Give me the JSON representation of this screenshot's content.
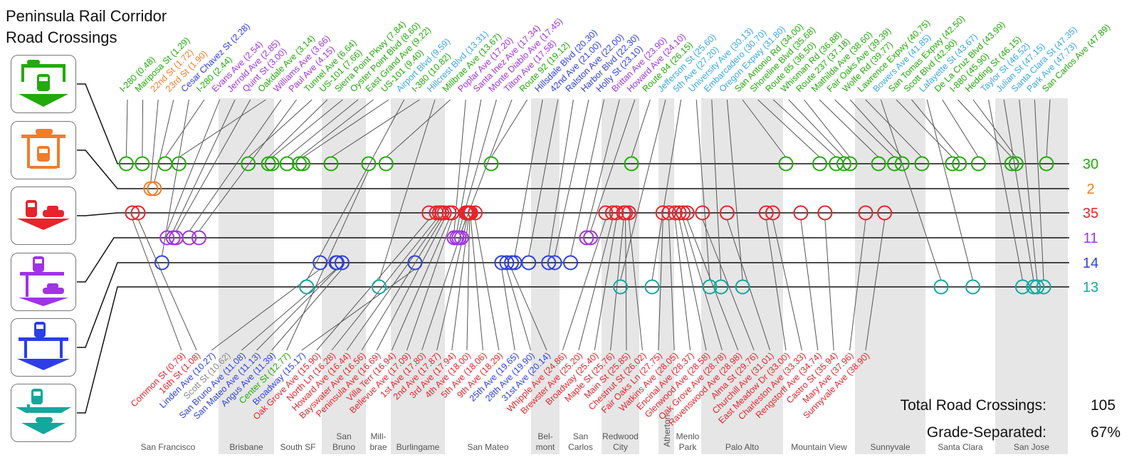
{
  "title": {
    "line1": "Peninsula Rail Corridor",
    "line2": "Road Crossings"
  },
  "colors": {
    "g": "#22aa0a",
    "o": "#f07d2a",
    "r": "#e8232b",
    "p": "#a033e6",
    "b": "#2d3ee6",
    "t": "#14a79c",
    "label_t": "#3aa8e8",
    "none": "#888888",
    "band": "#e6e6e6",
    "city": "#555555"
  },
  "rows": [
    {
      "cat": "g",
      "count": "30",
      "icon": "road-over-rail-icon"
    },
    {
      "cat": "o",
      "count": "2",
      "icon": "road-under-rail-icon"
    },
    {
      "cat": "r",
      "count": "35",
      "icon": "at-grade-crossing-icon"
    },
    {
      "cat": "p",
      "count": "11",
      "icon": "rail-over-road-icon"
    },
    {
      "cat": "b",
      "count": "14",
      "icon": "rail-bridge-over-road-icon"
    },
    {
      "cat": "t",
      "count": "13",
      "icon": "rail-over-sunken-road-icon"
    }
  ],
  "cities": [
    {
      "lines": [
        "San Francisco"
      ],
      "band": false
    },
    {
      "lines": [
        "Brisbane"
      ],
      "band": true
    },
    {
      "lines": [
        "South SF"
      ],
      "band": false
    },
    {
      "lines": [
        "San",
        "Bruno"
      ],
      "band": true
    },
    {
      "lines": [
        "Mill-",
        "brae"
      ],
      "band": false
    },
    {
      "lines": [
        "Burlingame"
      ],
      "band": true
    },
    {
      "lines": [
        "San Mateo"
      ],
      "band": false
    },
    {
      "lines": [
        "Bel-",
        "mont"
      ],
      "band": true
    },
    {
      "lines": [
        "San",
        "Carlos"
      ],
      "band": false
    },
    {
      "lines": [
        "Redwood",
        "City"
      ],
      "band": true
    },
    {
      "lines": [
        "Menlo",
        "Park"
      ],
      "band": false
    },
    {
      "lines": [
        "Atherton"
      ],
      "band": true
    },
    {
      "lines": [
        "Palo Alto"
      ],
      "band": true
    },
    {
      "lines": [
        "Mountain View"
      ],
      "band": false
    },
    {
      "lines": [
        "Sunnyvale"
      ],
      "band": true
    },
    {
      "lines": [
        "Santa Clara"
      ],
      "band": false
    },
    {
      "lines": [
        "San Jose"
      ],
      "band": true
    }
  ],
  "top_labels": [
    {
      "label": "I-280 (0.48)",
      "mile": 0.48,
      "cat": "g"
    },
    {
      "label": "Mariposa St (1.29)",
      "mile": 1.29,
      "cat": "g"
    },
    {
      "label": "22nd St (1.72)",
      "mile": 1.72,
      "cat": "o"
    },
    {
      "label": "23rd St (1.90)",
      "mile": 1.9,
      "cat": "o"
    },
    {
      "label": "Cesar Chavez St (2.28)",
      "mile": 2.28,
      "cat": "b"
    },
    {
      "label": "I-280 (2.44)",
      "mile": 2.44,
      "cat": "g"
    },
    {
      "label": "Evans Ave (2.54)",
      "mile": 2.54,
      "cat": "p"
    },
    {
      "label": "Jerrold Ave (2.85)",
      "mile": 2.85,
      "cat": "p"
    },
    {
      "label": "Quint St (3.00)",
      "mile": 3.0,
      "cat": "p"
    },
    {
      "label": "Oakdale Ave (3.14)",
      "mile": 3.14,
      "cat": "g"
    },
    {
      "label": "Williams Ave (3.66)",
      "mile": 3.66,
      "cat": "p"
    },
    {
      "label": "Paul Ave (4.15)",
      "mile": 4.15,
      "cat": "p"
    },
    {
      "label": "Tunnel Ave (6.64)",
      "mile": 6.64,
      "cat": "g"
    },
    {
      "label": "US-101 (7.66)",
      "mile": 7.66,
      "cat": "g"
    },
    {
      "label": "Sierra Point Pkwy (7.84)",
      "mile": 7.84,
      "cat": "g"
    },
    {
      "label": "Oyster Point Blvd (8.60)",
      "mile": 8.6,
      "cat": "g"
    },
    {
      "label": "East Grand Ave (9.22)",
      "mile": 9.22,
      "cat": "g"
    },
    {
      "label": "US-101 (9.40)",
      "mile": 9.4,
      "cat": "g"
    },
    {
      "label": "Airport Blvd (9.59)",
      "mile": 9.59,
      "cat": "t"
    },
    {
      "label": "I-380 (10.82)",
      "mile": 10.82,
      "cat": "g"
    },
    {
      "label": "Hillcrest Blvd (13.31)",
      "mile": 13.31,
      "cat": "t"
    },
    {
      "label": "Millbrae Ave (13.67)",
      "mile": 13.67,
      "cat": "g"
    },
    {
      "label": "Poplar Ave (17.20)",
      "mile": 17.2,
      "cat": "p"
    },
    {
      "label": "Santa Inez Ave (17.34)",
      "mile": 17.34,
      "cat": "p"
    },
    {
      "label": "Monte Diablo Ave (17.45)",
      "mile": 17.45,
      "cat": "p"
    },
    {
      "label": "Tilton Ave (17.58)",
      "mile": 17.58,
      "cat": "p"
    },
    {
      "label": "Route 92 (19.12)",
      "mile": 19.12,
      "cat": "g"
    },
    {
      "label": "Hillsdale Blvd (20.30)",
      "mile": 20.3,
      "cat": "b"
    },
    {
      "label": "42nd Ave (21.00)",
      "mile": 21.0,
      "cat": "b"
    },
    {
      "label": "Ralston Ave (22.00)",
      "mile": 22.0,
      "cat": "b"
    },
    {
      "label": "Harbor Blvd (22.30)",
      "mile": 22.3,
      "cat": "b"
    },
    {
      "label": "Holly St (23.10)",
      "mile": 23.1,
      "cat": "b"
    },
    {
      "label": "Brittan Ave (23.90)",
      "mile": 23.9,
      "cat": "p"
    },
    {
      "label": "Howard Ave (24.10)",
      "mile": 24.1,
      "cat": "p"
    },
    {
      "label": "Route 84 (26.15)",
      "mile": 26.15,
      "cat": "g"
    },
    {
      "label": "Jefferson St (25.60)",
      "mile": 25.6,
      "cat": "t"
    },
    {
      "label": "5th Ave (27.20)",
      "mile": 27.2,
      "cat": "t"
    },
    {
      "label": "University Ave (30.13)",
      "mile": 30.13,
      "cat": "t"
    },
    {
      "label": "Embarcadero (30.70)",
      "mile": 30.7,
      "cat": "t"
    },
    {
      "label": "Oregon Expwy (31.80)",
      "mile": 31.8,
      "cat": "t"
    },
    {
      "label": "San Antonio Rd (34.00)",
      "mile": 34.0,
      "cat": "g"
    },
    {
      "label": "Shoreline Blvd (35.68)",
      "mile": 35.68,
      "cat": "g"
    },
    {
      "label": "Route 85 (36.50)",
      "mile": 36.5,
      "cat": "g"
    },
    {
      "label": "Whisman Rd (36.88)",
      "mile": 36.88,
      "cat": "g"
    },
    {
      "label": "Route 237 (37.18)",
      "mile": 37.18,
      "cat": "g"
    },
    {
      "label": "Mathilda Ave (38.60)",
      "mile": 38.6,
      "cat": "g"
    },
    {
      "label": "Fair Oaks Ave (39.39)",
      "mile": 39.39,
      "cat": "g"
    },
    {
      "label": "Wolfe Rd (39.77)",
      "mile": 39.77,
      "cat": "g"
    },
    {
      "label": "Lawrence Expwy (40.75)",
      "mile": 40.75,
      "cat": "g"
    },
    {
      "label": "Bowers Ave (41.85)",
      "mile": 41.85,
      "cat": "t"
    },
    {
      "label": "San Tomas Expwy (42.50)",
      "mile": 42.5,
      "cat": "g"
    },
    {
      "label": "Scott Blvd (42.90)",
      "mile": 42.9,
      "cat": "g"
    },
    {
      "label": "Lafayette St (43.67)",
      "mile": 43.67,
      "cat": "t"
    },
    {
      "label": "De La Cruz Blvd (43.99)",
      "mile": 43.99,
      "cat": "g"
    },
    {
      "label": "I-880 (45.90)",
      "mile": 45.9,
      "cat": "g"
    },
    {
      "label": "Hedding St (46.15)",
      "mile": 46.15,
      "cat": "g"
    },
    {
      "label": "Taylor St (46.52)",
      "mile": 46.52,
      "cat": "t"
    },
    {
      "label": "Julian St (47.15)",
      "mile": 47.15,
      "cat": "t"
    },
    {
      "label": "Santa Clara St (47.35)",
      "mile": 47.35,
      "cat": "t"
    },
    {
      "label": "Park Ave (47.73)",
      "mile": 47.73,
      "cat": "t"
    },
    {
      "label": "San Carlos Ave (47.89)",
      "mile": 47.89,
      "cat": "g"
    }
  ],
  "bottom_labels": [
    {
      "label": "Common St (0.79)",
      "mile": 0.79,
      "cat": "r"
    },
    {
      "label": "16th St (1.08)",
      "mile": 1.08,
      "cat": "r"
    },
    {
      "label": "Linden Ave (10.27)",
      "mile": 10.27,
      "cat": "b"
    },
    {
      "label": "Scott St (10.62)",
      "mile": 10.62,
      "cat": "none"
    },
    {
      "label": "San Bruno Ave (11.08)",
      "mile": 11.08,
      "cat": "b"
    },
    {
      "label": "San Mateo Ave (11.13)",
      "mile": 11.13,
      "cat": "b"
    },
    {
      "label": "Angus Ave (11.39)",
      "mile": 11.39,
      "cat": "b"
    },
    {
      "label": "Center St (12.77)",
      "mile": 12.77,
      "cat": "g"
    },
    {
      "label": "Broadway (15.17)",
      "mile": 15.17,
      "cat": "b"
    },
    {
      "label": "Oak Grove Ave (15.90)",
      "mile": 15.9,
      "cat": "r"
    },
    {
      "label": "North Ln (16.28)",
      "mile": 16.28,
      "cat": "r"
    },
    {
      "label": "Howard Ave (16.44)",
      "mile": 16.44,
      "cat": "r"
    },
    {
      "label": "Bayswater Ave (16.56)",
      "mile": 16.56,
      "cat": "r"
    },
    {
      "label": "Peninsula Ave (16.69)",
      "mile": 16.69,
      "cat": "r"
    },
    {
      "label": "Villa Terr (16.94)",
      "mile": 16.94,
      "cat": "r"
    },
    {
      "label": "Bellevue Ave (17.09)",
      "mile": 17.09,
      "cat": "r"
    },
    {
      "label": "1st Ave (17.80)",
      "mile": 17.8,
      "cat": "r"
    },
    {
      "label": "2nd Ave (17.87)",
      "mile": 17.87,
      "cat": "r"
    },
    {
      "label": "3rd Ave (17.94)",
      "mile": 17.94,
      "cat": "r"
    },
    {
      "label": "4th Ave (18.00)",
      "mile": 18.0,
      "cat": "r"
    },
    {
      "label": "5th Ave (18.06)",
      "mile": 18.06,
      "cat": "r"
    },
    {
      "label": "9th Ave (18.29)",
      "mile": 18.29,
      "cat": "r"
    },
    {
      "label": "25th Ave (19.65)",
      "mile": 19.65,
      "cat": "b"
    },
    {
      "label": "28th Ave (19.90)",
      "mile": 19.9,
      "cat": "b"
    },
    {
      "label": "31st Ave (20.14)",
      "mile": 20.14,
      "cat": "b"
    },
    {
      "label": "Whipple Ave (24.86)",
      "mile": 24.86,
      "cat": "r"
    },
    {
      "label": "Brewster Ave (25.20)",
      "mile": 25.2,
      "cat": "r"
    },
    {
      "label": "Broadway (25.40)",
      "mile": 25.4,
      "cat": "r"
    },
    {
      "label": "Maple St (25.76)",
      "mile": 25.76,
      "cat": "r"
    },
    {
      "label": "Main St (25.85)",
      "mile": 25.85,
      "cat": "r"
    },
    {
      "label": "Chestnut St (26.02)",
      "mile": 26.02,
      "cat": "r"
    },
    {
      "label": "Fair Oaks Ln (27.75)",
      "mile": 27.75,
      "cat": "r"
    },
    {
      "label": "Watkins Ave (28.05)",
      "mile": 28.05,
      "cat": "r"
    },
    {
      "label": "Encinal Ave (28.37)",
      "mile": 28.37,
      "cat": "r"
    },
    {
      "label": "Glenwood Ave (28.58)",
      "mile": 28.58,
      "cat": "r"
    },
    {
      "label": "Oak Grove Ave (28.78)",
      "mile": 28.78,
      "cat": "r"
    },
    {
      "label": "Ravenswood Ave (28.98)",
      "mile": 28.98,
      "cat": "r"
    },
    {
      "label": "Alma St (29.76)",
      "mile": 29.76,
      "cat": "r"
    },
    {
      "label": "Churchill Ave (31.01)",
      "mile": 31.01,
      "cat": "r"
    },
    {
      "label": "East Meadow Dr (33.00)",
      "mile": 33.0,
      "cat": "r"
    },
    {
      "label": "Charleston Ave (33.33)",
      "mile": 33.33,
      "cat": "r"
    },
    {
      "label": "Rengstorff Ave (34.74)",
      "mile": 34.74,
      "cat": "r"
    },
    {
      "label": "Castro St (35.94)",
      "mile": 35.94,
      "cat": "r"
    },
    {
      "label": "Mary Ave (37.96)",
      "mile": 37.96,
      "cat": "r"
    },
    {
      "label": "Sunnyvale Ave (38.90)",
      "mile": 38.9,
      "cat": "r"
    }
  ],
  "totals": {
    "crossings_label": "Total Road Crossings:",
    "crossings_value": "105",
    "grade_sep_label": "Grade-Separated:",
    "grade_sep_value": "67%"
  }
}
